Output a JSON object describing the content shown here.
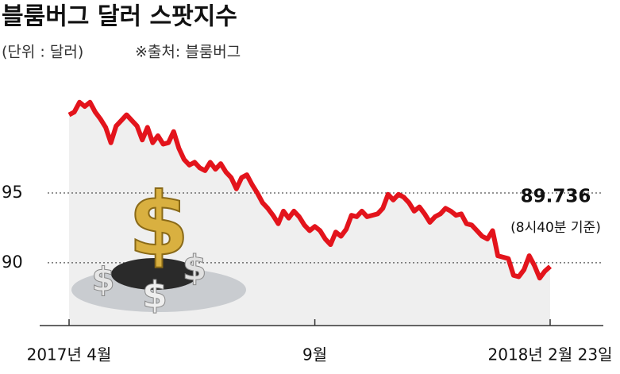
{
  "chart_data": {
    "type": "line",
    "title": "블룸버그 달러 스팟지수",
    "unit": "(단위 : 달러)",
    "source": "※출처: 블룸버그",
    "annotation": "(8시40분 기준)",
    "categories": [
      "2017년 4월",
      null,
      null,
      null,
      null,
      null,
      null,
      null,
      null,
      null,
      null,
      null,
      null,
      null,
      null,
      null,
      null,
      null,
      null,
      null,
      null,
      null,
      null,
      null,
      null,
      null,
      null,
      null,
      null,
      null,
      null,
      null,
      null,
      null,
      null,
      null,
      null,
      null,
      null,
      null,
      null,
      null,
      null,
      null,
      null,
      null,
      null,
      "9월",
      null,
      null,
      null,
      null,
      null,
      null,
      null,
      null,
      null,
      null,
      null,
      null,
      null,
      null,
      null,
      null,
      null,
      null,
      null,
      null,
      null,
      null,
      null,
      null,
      null,
      null,
      null,
      null,
      null,
      null,
      null,
      null,
      null,
      null,
      null,
      null,
      null,
      null,
      null,
      null,
      null,
      null,
      null,
      null,
      "2018년 2월 23일"
    ],
    "values": [
      100.6,
      100.8,
      101.5,
      101.2,
      101.5,
      100.8,
      100.3,
      99.7,
      98.6,
      99.8,
      100.2,
      100.6,
      100.2,
      99.8,
      98.8,
      99.7,
      98.6,
      99.1,
      98.5,
      98.6,
      99.4,
      98.2,
      97.4,
      97.0,
      97.2,
      96.8,
      96.6,
      97.2,
      96.7,
      97.1,
      96.5,
      96.1,
      95.3,
      96.1,
      96.3,
      95.6,
      95.0,
      94.3,
      93.9,
      93.4,
      92.8,
      93.7,
      93.2,
      93.7,
      93.3,
      92.7,
      92.3,
      92.6,
      92.3,
      91.7,
      91.3,
      92.2,
      91.9,
      92.4,
      93.4,
      93.3,
      93.7,
      93.3,
      93.4,
      93.5,
      93.9,
      94.9,
      94.5,
      94.9,
      94.7,
      94.3,
      93.7,
      94.0,
      93.5,
      92.9,
      93.3,
      93.5,
      93.9,
      93.7,
      93.4,
      93.5,
      92.8,
      92.7,
      92.3,
      91.9,
      91.7,
      92.3,
      90.5,
      90.4,
      90.3,
      89.1,
      89.0,
      89.5,
      90.5,
      89.8,
      88.9,
      89.4,
      89.736
    ],
    "color": "#e3141c",
    "ylim": [
      85.5,
      102
    ],
    "yticks": [
      90,
      95
    ],
    "grid": true
  }
}
